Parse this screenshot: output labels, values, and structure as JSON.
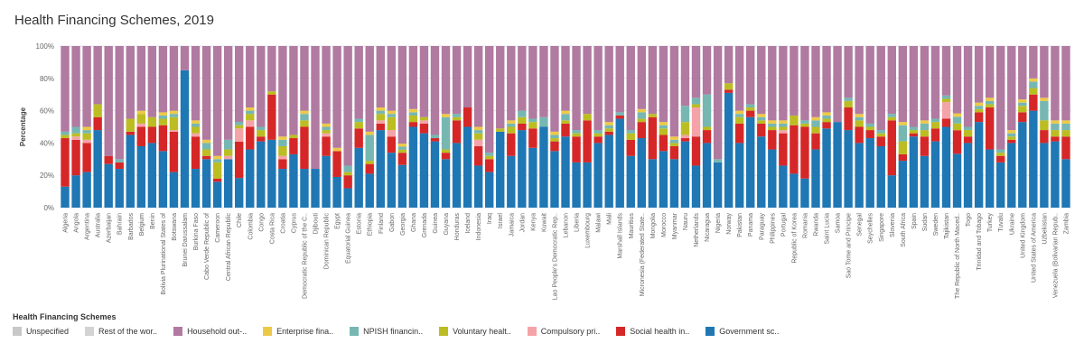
{
  "chart_data": {
    "type": "bar",
    "stacked": true,
    "title": "Health Financing Schemes, 2019",
    "xlabel": "",
    "ylabel": "Percentage",
    "ylim": [
      0,
      100
    ],
    "yticks": [
      "0%",
      "20%",
      "40%",
      "60%",
      "80%",
      "100%"
    ],
    "ytick_values": [
      0,
      20,
      40,
      60,
      80,
      100
    ],
    "grid": true,
    "legend_position": "bottom-left",
    "legend_title": "Health Financing Schemes",
    "category_labels": [
      "Algeria",
      "Angola",
      "Argentina",
      "Australia",
      "Azerbaijan",
      "Bahrain",
      "Barbados",
      "Belgium",
      "Benin",
      "Bolivia Plurinational States of",
      "Botswana",
      "Brunei Darussalam",
      "Burkina Faso",
      "Cabo Verde Republic of",
      "Cameroon",
      "Central African Republic",
      "Chile",
      "Colombia",
      "Congo",
      "Costa Rica",
      "Croatia",
      "Cyprus",
      "Democratic Republic of the C..",
      "Djibouti",
      "Dominican Republic",
      "Egypt",
      "Equatorial Guinea",
      "Estonia",
      "Ethiopia",
      "Finland",
      "Gabon",
      "Georgia",
      "Ghana",
      "Grenada",
      "Guinea",
      "Guyana",
      "Honduras",
      "Iceland",
      "Indonesia",
      "Iraq",
      "Israel",
      "Jamaica",
      "Jordan",
      "Kenya",
      "Kuwait",
      "Lao People's Democratic Rep..",
      "Lebanon",
      "Liberia",
      "Luxembourg",
      "Malawi",
      "Mali",
      "Marshall Islands",
      "Mauritius",
      "Micronesia (Federated State..",
      "Mongolia",
      "Morocco",
      "Myanmar",
      "Nauru",
      "Netherlands",
      "Nicaragua",
      "Nigeria",
      "Norway",
      "Pakistan",
      "Panama",
      "Paraguay",
      "Philippines",
      "Portugal",
      "Republic of Korea",
      "Romania",
      "Rwanda",
      "Saint Lucia",
      "Samoa",
      "Sao Tome and Principe",
      "Senegal",
      "Seychelles",
      "Singapore",
      "Slovenia",
      "South Africa",
      "Spain",
      "Sudan",
      "Sweden",
      "Tajikistan",
      "The Republic of North Maced..",
      "Togo",
      "Trinidad and Tobago",
      "Turkey",
      "Tuvalu",
      "Ukraine",
      "United Kingdom",
      "United States of America",
      "Uzbekistan",
      "Venezuela (Bolivarian Repub..",
      "Zambia"
    ],
    "series": [
      {
        "name": "Government sc..",
        "color": "#1f77b4",
        "values": [
          13,
          20,
          22,
          48,
          27,
          24,
          45,
          38,
          40,
          35,
          22,
          85,
          24,
          30,
          16,
          30,
          18,
          36,
          41,
          42,
          24,
          33,
          24,
          24,
          32,
          19,
          12,
          37,
          21,
          48,
          34,
          28,
          50,
          46,
          41,
          30,
          40,
          50,
          26,
          22,
          47,
          32,
          48,
          37,
          50,
          35,
          44,
          28,
          28,
          40,
          45,
          55,
          32,
          43,
          30,
          35,
          30,
          41,
          26,
          40,
          28,
          71,
          40,
          56,
          44,
          36,
          26,
          21,
          18,
          36,
          49,
          53,
          48,
          40,
          43,
          38,
          20,
          29,
          44,
          32,
          41,
          49,
          32,
          40,
          53,
          36,
          28,
          40,
          53,
          60,
          40,
          41,
          30
        ]
      },
      {
        "name": "Social health in..",
        "color": "#d62728",
        "values": [
          30,
          22,
          18,
          8,
          5,
          4,
          2,
          12,
          10,
          16,
          25,
          0,
          20,
          2,
          2,
          0,
          22,
          14,
          3,
          28,
          6,
          10,
          26,
          0,
          12,
          16,
          8,
          12,
          6,
          4,
          10,
          8,
          3,
          6,
          2,
          4,
          14,
          12,
          12,
          8,
          0,
          14,
          4,
          12,
          0,
          6,
          8,
          16,
          26,
          4,
          2,
          2,
          10,
          10,
          26,
          10,
          8,
          2,
          18,
          8,
          0,
          2,
          12,
          4,
          8,
          12,
          20,
          30,
          32,
          10,
          4,
          0,
          14,
          10,
          5,
          6,
          34,
          4,
          2,
          12,
          8,
          5,
          14,
          4,
          6,
          26,
          4,
          2,
          6,
          10,
          8,
          3,
          14
        ]
      },
      {
        "name": "Compulsory pri..",
        "color": "#f4a3a8",
        "values": [
          0,
          2,
          2,
          0,
          0,
          0,
          0,
          2,
          0,
          0,
          1,
          0,
          2,
          0,
          0,
          2,
          8,
          4,
          0,
          0,
          2,
          0,
          0,
          0,
          2,
          0,
          0,
          0,
          0,
          2,
          4,
          0,
          0,
          2,
          0,
          0,
          0,
          0,
          4,
          0,
          0,
          0,
          0,
          0,
          0,
          0,
          0,
          0,
          0,
          0,
          0,
          0,
          0,
          0,
          0,
          0,
          0,
          2,
          18,
          0,
          0,
          0,
          0,
          0,
          0,
          0,
          2,
          0,
          0,
          0,
          0,
          0,
          0,
          0,
          0,
          0,
          0,
          0,
          0,
          0,
          0,
          10,
          0,
          0,
          0,
          0,
          0,
          0,
          0,
          0,
          0,
          0,
          0
        ]
      },
      {
        "name": "Voluntary healt..",
        "color": "#bcbd22",
        "values": [
          2,
          2,
          4,
          8,
          0,
          0,
          8,
          6,
          6,
          4,
          8,
          0,
          4,
          4,
          10,
          4,
          2,
          4,
          4,
          2,
          6,
          2,
          4,
          0,
          2,
          0,
          2,
          4,
          2,
          4,
          8,
          2,
          4,
          2,
          0,
          2,
          2,
          0,
          4,
          2,
          2,
          4,
          4,
          4,
          0,
          2,
          2,
          2,
          4,
          2,
          2,
          0,
          4,
          2,
          2,
          4,
          2,
          8,
          2,
          2,
          0,
          4,
          4,
          2,
          2,
          2,
          2,
          6,
          2,
          4,
          2,
          0,
          4,
          4,
          2,
          2,
          2,
          8,
          2,
          4,
          4,
          2,
          4,
          4,
          2,
          2,
          2,
          2,
          4,
          4,
          6,
          4,
          4
        ]
      },
      {
        "name": "NPISH financin..",
        "color": "#76b7b2",
        "values": [
          2,
          4,
          2,
          0,
          0,
          2,
          0,
          0,
          0,
          2,
          2,
          0,
          2,
          4,
          2,
          6,
          2,
          2,
          2,
          0,
          4,
          0,
          4,
          0,
          2,
          0,
          4,
          2,
          16,
          2,
          2,
          2,
          2,
          0,
          2,
          20,
          2,
          0,
          2,
          2,
          0,
          2,
          4,
          2,
          6,
          2,
          4,
          2,
          0,
          2,
          2,
          2,
          2,
          4,
          0,
          2,
          2,
          10,
          4,
          20,
          2,
          0,
          2,
          2,
          2,
          2,
          2,
          0,
          2,
          4,
          2,
          0,
          2,
          2,
          2,
          2,
          2,
          10,
          2,
          4,
          2,
          2,
          4,
          2,
          2,
          2,
          2,
          2,
          2,
          4,
          12,
          4,
          4
        ]
      },
      {
        "name": "Enterprise fina..",
        "color": "#edc948",
        "values": [
          0,
          0,
          2,
          0,
          0,
          0,
          0,
          2,
          0,
          2,
          2,
          0,
          2,
          2,
          2,
          0,
          0,
          2,
          0,
          0,
          2,
          0,
          2,
          0,
          2,
          2,
          0,
          0,
          2,
          2,
          2,
          2,
          2,
          0,
          0,
          2,
          0,
          0,
          2,
          0,
          0,
          2,
          0,
          0,
          0,
          2,
          2,
          0,
          0,
          0,
          2,
          0,
          0,
          2,
          0,
          2,
          2,
          0,
          0,
          0,
          0,
          0,
          2,
          0,
          2,
          2,
          2,
          0,
          0,
          2,
          2,
          0,
          0,
          2,
          0,
          0,
          0,
          2,
          0,
          2,
          0,
          0,
          2,
          0,
          2,
          2,
          0,
          2,
          2,
          2,
          2,
          2,
          2
        ]
      },
      {
        "name": "Household out-..",
        "color": "#b07aa1",
        "values": [
          53,
          50,
          50,
          36,
          68,
          70,
          45,
          40,
          44,
          41,
          40,
          15,
          46,
          58,
          68,
          58,
          46,
          38,
          50,
          28,
          56,
          55,
          40,
          76,
          48,
          63,
          74,
          45,
          53,
          38,
          40,
          64,
          39,
          44,
          55,
          42,
          42,
          38,
          50,
          66,
          51,
          46,
          40,
          45,
          44,
          53,
          40,
          52,
          42,
          52,
          47,
          41,
          52,
          39,
          42,
          47,
          56,
          37,
          32,
          30,
          70,
          23,
          40,
          36,
          42,
          46,
          46,
          43,
          46,
          44,
          41,
          47,
          32,
          42,
          48,
          52,
          42,
          47,
          50,
          46,
          45,
          30,
          40,
          50,
          35,
          32,
          64,
          52,
          33,
          20,
          32,
          46,
          46
        ]
      },
      {
        "name": "Rest of the wor..",
        "color": "#d3d3d3",
        "values": [
          0,
          0,
          0,
          0,
          0,
          0,
          0,
          0,
          0,
          0,
          0,
          0,
          0,
          0,
          0,
          0,
          0,
          0,
          0,
          0,
          0,
          0,
          0,
          0,
          0,
          0,
          0,
          0,
          0,
          0,
          0,
          0,
          0,
          0,
          0,
          0,
          0,
          0,
          0,
          0,
          0,
          0,
          0,
          0,
          0,
          0,
          0,
          0,
          0,
          0,
          0,
          0,
          0,
          0,
          0,
          0,
          0,
          0,
          0,
          0,
          0,
          0,
          0,
          0,
          0,
          0,
          0,
          0,
          0,
          0,
          0,
          0,
          0,
          0,
          0,
          0,
          0,
          0,
          0,
          0,
          0,
          0,
          0,
          0,
          0,
          0,
          0,
          0,
          0,
          0,
          0,
          0,
          0
        ]
      },
      {
        "name": "Unspecified",
        "color": "#c8c8c8",
        "values": [
          0,
          0,
          0,
          0,
          0,
          0,
          0,
          0,
          0,
          0,
          0,
          0,
          0,
          0,
          0,
          0,
          0,
          0,
          0,
          0,
          0,
          0,
          0,
          0,
          0,
          0,
          0,
          0,
          0,
          0,
          0,
          0,
          0,
          0,
          0,
          0,
          0,
          0,
          0,
          0,
          0,
          0,
          0,
          0,
          0,
          0,
          0,
          0,
          0,
          0,
          0,
          0,
          0,
          0,
          0,
          0,
          0,
          0,
          0,
          0,
          0,
          0,
          0,
          0,
          0,
          0,
          0,
          0,
          0,
          0,
          0,
          0,
          0,
          0,
          0,
          0,
          0,
          0,
          0,
          0,
          0,
          0,
          0,
          0,
          0,
          0,
          0,
          0,
          0,
          0,
          0,
          0,
          0
        ]
      }
    ],
    "legend_order": [
      "Unspecified",
      "Rest of the wor..",
      "Household out-..",
      "Enterprise fina..",
      "NPISH financin..",
      "Voluntary healt..",
      "Compulsory pri..",
      "Social health in..",
      "Government sc.."
    ]
  }
}
